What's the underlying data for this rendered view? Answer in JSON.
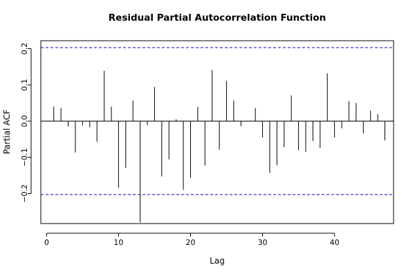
{
  "chart_data": {
    "type": "bar",
    "title": "Residual Partial Autocorrelation Function",
    "xlabel": "Lag",
    "ylabel": "Partial ACF",
    "xlim": [
      -0.8,
      48.2
    ],
    "ylim": [
      -0.283,
      0.222
    ],
    "x_ticks": [
      0,
      10,
      20,
      30,
      40
    ],
    "y_ticks": [
      -0.2,
      -0.1,
      0.0,
      0.1,
      0.2
    ],
    "y_tick_labels": [
      "−0.2",
      "−0.1",
      "0.0",
      "0.1",
      "0.2"
    ],
    "zero_line": 0,
    "confidence_bound": 0.203,
    "confidence_color": "#0000cc",
    "grid": false,
    "lags": [
      1,
      2,
      3,
      4,
      5,
      6,
      7,
      8,
      9,
      10,
      11,
      12,
      13,
      14,
      15,
      16,
      17,
      18,
      19,
      20,
      21,
      22,
      23,
      24,
      25,
      26,
      27,
      28,
      29,
      30,
      31,
      32,
      33,
      34,
      35,
      36,
      37,
      38,
      39,
      40,
      41,
      42,
      43,
      44,
      45,
      46,
      47
    ],
    "values": [
      0.04,
      0.036,
      -0.015,
      -0.087,
      -0.012,
      -0.017,
      -0.057,
      0.139,
      0.04,
      -0.184,
      -0.129,
      0.057,
      -0.28,
      -0.011,
      0.094,
      -0.153,
      -0.106,
      0.005,
      -0.19,
      -0.157,
      0.039,
      -0.123,
      0.141,
      -0.079,
      0.111,
      0.057,
      -0.014,
      0.001,
      0.036,
      -0.045,
      -0.143,
      -0.122,
      -0.072,
      0.071,
      -0.08,
      -0.085,
      -0.055,
      -0.074,
      0.132,
      -0.045,
      -0.02,
      0.055,
      0.05,
      -0.034,
      0.029,
      0.019,
      -0.053
    ]
  }
}
